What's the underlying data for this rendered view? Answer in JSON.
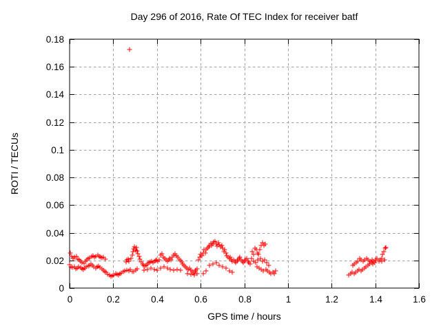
{
  "chart_data": {
    "type": "scatter",
    "title": "Day 296 of 2016, Rate Of TEC Index for receiver batf",
    "xlabel": "GPS time / hours",
    "ylabel": "ROTI / TECUs",
    "xlim": [
      0,
      1.6
    ],
    "ylim": [
      0,
      0.18
    ],
    "xtick_labels": [
      "0",
      "0.2",
      "0.4",
      "0.6",
      "0.8",
      "1",
      "1.2",
      "1.4",
      "1.6"
    ],
    "ytick_labels": [
      "0",
      "0.02",
      "0.04",
      "0.06",
      "0.08",
      "0.1",
      "0.12",
      "0.14",
      "0.16",
      "0.18"
    ],
    "grid": true,
    "legend": "none",
    "marker": "plus",
    "marker_color": "#ff0000",
    "grid_color": "#a0a0a0",
    "axis_color": "#000000",
    "outlier": [
      0.276,
      0.172
    ],
    "points": [
      [
        0.002,
        0.0253
      ],
      [
        0.009,
        0.0228
      ],
      [
        0.016,
        0.0215
      ],
      [
        0.023,
        0.0222
      ],
      [
        0.03,
        0.0228
      ],
      [
        0.037,
        0.021
      ],
      [
        0.044,
        0.0203
      ],
      [
        0.051,
        0.0192
      ],
      [
        0.058,
        0.0185
      ],
      [
        0.065,
        0.018
      ],
      [
        0.072,
        0.0195
      ],
      [
        0.079,
        0.0205
      ],
      [
        0.086,
        0.0212
      ],
      [
        0.093,
        0.022
      ],
      [
        0.1,
        0.0228
      ],
      [
        0.107,
        0.0235
      ],
      [
        0.114,
        0.0225
      ],
      [
        0.121,
        0.023
      ],
      [
        0.128,
        0.0238
      ],
      [
        0.135,
        0.023
      ],
      [
        0.142,
        0.0225
      ],
      [
        0.149,
        0.0218
      ],
      [
        0.156,
        0.0225
      ],
      [
        0.163,
        0.021
      ],
      [
        0.0,
        0.0168
      ],
      [
        0.007,
        0.0155
      ],
      [
        0.014,
        0.0147
      ],
      [
        0.021,
        0.0152
      ],
      [
        0.028,
        0.0138
      ],
      [
        0.035,
        0.0146
      ],
      [
        0.042,
        0.0155
      ],
      [
        0.049,
        0.0147
      ],
      [
        0.056,
        0.0137
      ],
      [
        0.063,
        0.0132
      ],
      [
        0.07,
        0.0146
      ],
      [
        0.077,
        0.0152
      ],
      [
        0.084,
        0.0158
      ],
      [
        0.091,
        0.0165
      ],
      [
        0.098,
        0.0172
      ],
      [
        0.105,
        0.0165
      ],
      [
        0.112,
        0.0155
      ],
      [
        0.119,
        0.0146
      ],
      [
        0.126,
        0.0152
      ],
      [
        0.133,
        0.0158
      ],
      [
        0.14,
        0.0148
      ],
      [
        0.147,
        0.0138
      ],
      [
        0.154,
        0.0128
      ],
      [
        0.161,
        0.012
      ],
      [
        0.168,
        0.0112
      ],
      [
        0.175,
        0.0098
      ],
      [
        0.182,
        0.0092
      ],
      [
        0.189,
        0.0087
      ],
      [
        0.196,
        0.0091
      ],
      [
        0.203,
        0.0096
      ],
      [
        0.21,
        0.0105
      ],
      [
        0.217,
        0.01
      ],
      [
        0.224,
        0.0096
      ],
      [
        0.231,
        0.0104
      ],
      [
        0.238,
        0.011
      ],
      [
        0.245,
        0.0117
      ],
      [
        0.252,
        0.0124
      ],
      [
        0.258,
        0.019
      ],
      [
        0.263,
        0.0204
      ],
      [
        0.268,
        0.021
      ],
      [
        0.272,
        0.0196
      ],
      [
        0.276,
        0.1723
      ],
      [
        0.281,
        0.0212
      ],
      [
        0.286,
        0.0238
      ],
      [
        0.29,
        0.0262
      ],
      [
        0.294,
        0.0285
      ],
      [
        0.298,
        0.0296
      ],
      [
        0.302,
        0.0272
      ],
      [
        0.306,
        0.0293
      ],
      [
        0.31,
        0.0268
      ],
      [
        0.314,
        0.0247
      ],
      [
        0.318,
        0.0228
      ],
      [
        0.323,
        0.021
      ],
      [
        0.328,
        0.019
      ],
      [
        0.262,
        0.0131
      ],
      [
        0.27,
        0.0124
      ],
      [
        0.278,
        0.0134
      ],
      [
        0.286,
        0.0117
      ],
      [
        0.294,
        0.0121
      ],
      [
        0.302,
        0.0129
      ],
      [
        0.31,
        0.0137
      ],
      [
        0.333,
        0.0176
      ],
      [
        0.339,
        0.0166
      ],
      [
        0.345,
        0.0157
      ],
      [
        0.351,
        0.0166
      ],
      [
        0.357,
        0.0176
      ],
      [
        0.363,
        0.0184
      ],
      [
        0.369,
        0.0191
      ],
      [
        0.375,
        0.0196
      ],
      [
        0.381,
        0.0186
      ],
      [
        0.387,
        0.0192
      ],
      [
        0.393,
        0.0199
      ],
      [
        0.399,
        0.0205
      ],
      [
        0.405,
        0.0196
      ],
      [
        0.411,
        0.0206
      ],
      [
        0.417,
        0.0237
      ],
      [
        0.423,
        0.0247
      ],
      [
        0.429,
        0.0226
      ],
      [
        0.435,
        0.0216
      ],
      [
        0.441,
        0.0206
      ],
      [
        0.447,
        0.0196
      ],
      [
        0.453,
        0.0206
      ],
      [
        0.459,
        0.0216
      ],
      [
        0.465,
        0.0206
      ],
      [
        0.471,
        0.0226
      ],
      [
        0.477,
        0.024
      ],
      [
        0.483,
        0.0251
      ],
      [
        0.489,
        0.0235
      ],
      [
        0.495,
        0.0222
      ],
      [
        0.501,
        0.021
      ],
      [
        0.507,
        0.02
      ],
      [
        0.513,
        0.019
      ],
      [
        0.342,
        0.0127
      ],
      [
        0.357,
        0.0136
      ],
      [
        0.372,
        0.0146
      ],
      [
        0.387,
        0.0136
      ],
      [
        0.402,
        0.0127
      ],
      [
        0.417,
        0.0146
      ],
      [
        0.432,
        0.0156
      ],
      [
        0.447,
        0.0146
      ],
      [
        0.462,
        0.0136
      ],
      [
        0.477,
        0.0127
      ],
      [
        0.492,
        0.0136
      ],
      [
        0.507,
        0.0127
      ],
      [
        0.519,
        0.0176
      ],
      [
        0.525,
        0.0166
      ],
      [
        0.531,
        0.0156
      ],
      [
        0.537,
        0.0146
      ],
      [
        0.543,
        0.0136
      ],
      [
        0.549,
        0.0146
      ],
      [
        0.555,
        0.0131
      ],
      [
        0.561,
        0.0121
      ],
      [
        0.567,
        0.0111
      ],
      [
        0.573,
        0.0121
      ],
      [
        0.579,
        0.0131
      ],
      [
        0.585,
        0.0141
      ],
      [
        0.54,
        0.0106
      ],
      [
        0.555,
        0.0101
      ],
      [
        0.57,
        0.0096
      ],
      [
        0.585,
        0.0104
      ],
      [
        0.591,
        0.0206
      ],
      [
        0.596,
        0.0226
      ],
      [
        0.601,
        0.0246
      ],
      [
        0.606,
        0.0236
      ],
      [
        0.611,
        0.0256
      ],
      [
        0.616,
        0.0276
      ],
      [
        0.621,
        0.0256
      ],
      [
        0.626,
        0.0276
      ],
      [
        0.631,
        0.0286
      ],
      [
        0.636,
        0.0296
      ],
      [
        0.641,
        0.0306
      ],
      [
        0.646,
        0.0322
      ],
      [
        0.651,
        0.0306
      ],
      [
        0.656,
        0.0316
      ],
      [
        0.661,
        0.0331
      ],
      [
        0.666,
        0.0336
      ],
      [
        0.671,
        0.0316
      ],
      [
        0.676,
        0.0301
      ],
      [
        0.681,
        0.0326
      ],
      [
        0.686,
        0.0311
      ],
      [
        0.691,
        0.0296
      ],
      [
        0.696,
        0.0306
      ],
      [
        0.701,
        0.0286
      ],
      [
        0.706,
        0.0266
      ],
      [
        0.711,
        0.0276
      ],
      [
        0.716,
        0.0256
      ],
      [
        0.721,
        0.0236
      ],
      [
        0.726,
        0.0226
      ],
      [
        0.731,
        0.0216
      ],
      [
        0.736,
        0.0226
      ],
      [
        0.741,
        0.0206
      ],
      [
        0.746,
        0.0196
      ],
      [
        0.751,
        0.0206
      ],
      [
        0.611,
        0.0106
      ],
      [
        0.626,
        0.0126
      ],
      [
        0.641,
        0.0166
      ],
      [
        0.656,
        0.0176
      ],
      [
        0.671,
        0.0186
      ],
      [
        0.686,
        0.0166
      ],
      [
        0.701,
        0.0156
      ],
      [
        0.716,
        0.0146
      ],
      [
        0.731,
        0.0126
      ],
      [
        0.744,
        0.0116
      ],
      [
        0.756,
        0.0196
      ],
      [
        0.761,
        0.0186
      ],
      [
        0.766,
        0.0196
      ],
      [
        0.771,
        0.0206
      ],
      [
        0.776,
        0.0216
      ],
      [
        0.781,
        0.0226
      ],
      [
        0.786,
        0.0206
      ],
      [
        0.791,
        0.0196
      ],
      [
        0.796,
        0.0186
      ],
      [
        0.801,
        0.0196
      ],
      [
        0.806,
        0.0206
      ],
      [
        0.811,
        0.0216
      ],
      [
        0.816,
        0.0196
      ],
      [
        0.821,
        0.0186
      ],
      [
        0.826,
        0.0176
      ],
      [
        0.836,
        0.0266
      ],
      [
        0.842,
        0.0246
      ],
      [
        0.848,
        0.029
      ],
      [
        0.854,
        0.0276
      ],
      [
        0.86,
        0.0256
      ],
      [
        0.866,
        0.0246
      ],
      [
        0.872,
        0.0276
      ],
      [
        0.878,
        0.031
      ],
      [
        0.884,
        0.0326
      ],
      [
        0.89,
        0.0306
      ],
      [
        0.896,
        0.0316
      ],
      [
        0.833,
        0.0216
      ],
      [
        0.843,
        0.0196
      ],
      [
        0.853,
        0.0186
      ],
      [
        0.863,
        0.0206
      ],
      [
        0.873,
        0.0216
      ],
      [
        0.883,
        0.0196
      ],
      [
        0.893,
        0.0206
      ],
      [
        0.903,
        0.0186
      ],
      [
        0.911,
        0.0166
      ],
      [
        0.858,
        0.0156
      ],
      [
        0.868,
        0.0146
      ],
      [
        0.878,
        0.0136
      ],
      [
        0.888,
        0.0126
      ],
      [
        0.898,
        0.0136
      ],
      [
        0.906,
        0.0126
      ],
      [
        0.914,
        0.0116
      ],
      [
        0.922,
        0.0106
      ],
      [
        0.93,
        0.0116
      ],
      [
        0.938,
        0.0106
      ],
      [
        0.945,
        0.0126
      ],
      [
        1.278,
        0.0096
      ],
      [
        1.286,
        0.0106
      ],
      [
        1.294,
        0.0116
      ],
      [
        1.302,
        0.0106
      ],
      [
        1.31,
        0.0116
      ],
      [
        1.318,
        0.0126
      ],
      [
        1.326,
        0.0136
      ],
      [
        1.334,
        0.0126
      ],
      [
        1.342,
        0.0136
      ],
      [
        1.35,
        0.0146
      ],
      [
        1.358,
        0.0156
      ],
      [
        1.366,
        0.0166
      ],
      [
        1.374,
        0.0176
      ],
      [
        1.382,
        0.0186
      ],
      [
        1.39,
        0.0176
      ],
      [
        1.398,
        0.0186
      ],
      [
        1.296,
        0.0166
      ],
      [
        1.304,
        0.0176
      ],
      [
        1.312,
        0.0186
      ],
      [
        1.32,
        0.0196
      ],
      [
        1.328,
        0.0216
      ],
      [
        1.336,
        0.0206
      ],
      [
        1.344,
        0.0196
      ],
      [
        1.352,
        0.0206
      ],
      [
        1.36,
        0.0216
      ],
      [
        1.368,
        0.0206
      ],
      [
        1.376,
        0.0196
      ],
      [
        1.384,
        0.0206
      ],
      [
        1.392,
        0.0196
      ],
      [
        1.4,
        0.0206
      ],
      [
        1.408,
        0.0216
      ],
      [
        1.416,
        0.0196
      ],
      [
        1.424,
        0.0206
      ],
      [
        1.429,
        0.0216
      ],
      [
        1.434,
        0.0246
      ],
      [
        1.439,
        0.0266
      ],
      [
        1.444,
        0.0286
      ],
      [
        1.449,
        0.0291
      ],
      [
        1.431,
        0.0196
      ],
      [
        1.441,
        0.0206
      ]
    ]
  }
}
